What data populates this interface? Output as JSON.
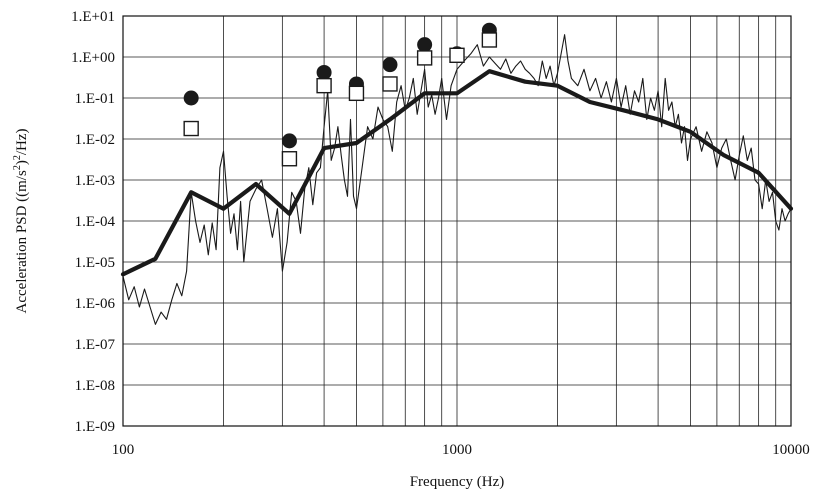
{
  "chart_data": {
    "type": "line",
    "xlabel": "Frequency (Hz)",
    "ylabel_parts": {
      "before": "Acceleration PSD ((m/s",
      "sup1": "2",
      "middle": ")",
      "sup2": "2",
      "after": "/Hz)"
    },
    "x_scale": "log",
    "y_scale": "log",
    "xlim": [
      100,
      10000
    ],
    "ylim": [
      1e-09,
      10
    ],
    "grid": true,
    "x_ticks": [
      {
        "value": 100,
        "label": "100"
      },
      {
        "value": 1000,
        "label": "1000"
      },
      {
        "value": 10000,
        "label": "10000"
      }
    ],
    "y_ticks": [
      {
        "value": 10,
        "label": "1.E+01"
      },
      {
        "value": 1,
        "label": "1.E+00"
      },
      {
        "value": 0.1,
        "label": "1.E-01"
      },
      {
        "value": 0.01,
        "label": "1.E-02"
      },
      {
        "value": 0.001,
        "label": "1.E-03"
      },
      {
        "value": 0.0001,
        "label": "1.E-04"
      },
      {
        "value": 1e-05,
        "label": "1.E-05"
      },
      {
        "value": 1e-06,
        "label": "1.E-06"
      },
      {
        "value": 1e-07,
        "label": "1.E-07"
      },
      {
        "value": 1e-08,
        "label": "1.E-08"
      },
      {
        "value": 1e-09,
        "label": "1.E-09"
      }
    ],
    "series": [
      {
        "style": "thin-line",
        "color": "#1a1a1a",
        "x": [
          100,
          104,
          108,
          112,
          116,
          120,
          125,
          130,
          135,
          140,
          145,
          150,
          155,
          160,
          165,
          170,
          175,
          180,
          185,
          190,
          195,
          200,
          205,
          210,
          215,
          220,
          225,
          230,
          240,
          250,
          260,
          270,
          280,
          290,
          300,
          310,
          320,
          330,
          340,
          350,
          360,
          370,
          380,
          390,
          400,
          410,
          420,
          430,
          440,
          450,
          460,
          470,
          480,
          490,
          500,
          520,
          540,
          560,
          580,
          600,
          620,
          640,
          660,
          680,
          700,
          720,
          740,
          760,
          780,
          800,
          820,
          840,
          860,
          880,
          900,
          930,
          960,
          1000,
          1050,
          1100,
          1150,
          1200,
          1250,
          1300,
          1350,
          1400,
          1450,
          1500,
          1550,
          1600,
          1650,
          1700,
          1750,
          1800,
          1850,
          1900,
          1950,
          2000,
          2050,
          2100,
          2150,
          2200,
          2300,
          2400,
          2500,
          2600,
          2700,
          2800,
          2900,
          3000,
          3100,
          3200,
          3300,
          3400,
          3500,
          3600,
          3700,
          3800,
          3900,
          4000,
          4100,
          4200,
          4300,
          4400,
          4500,
          4600,
          4700,
          4800,
          4900,
          5000,
          5200,
          5400,
          5600,
          5800,
          6000,
          6200,
          6400,
          6600,
          6800,
          7000,
          7200,
          7400,
          7600,
          7800,
          8000,
          8200,
          8400,
          8600,
          8800,
          9000,
          9200,
          9400,
          9600,
          9800,
          10000
        ],
        "values": [
          4.5e-06,
          1.2e-06,
          2.5e-06,
          8e-07,
          2.2e-06,
          9e-07,
          3e-07,
          6e-07,
          4e-07,
          1.2e-06,
          3e-06,
          1.5e-06,
          6e-06,
          0.0005,
          0.0001,
          3e-05,
          8e-05,
          1.5e-05,
          9e-05,
          2e-05,
          0.002,
          0.005,
          0.0004,
          5e-05,
          0.00015,
          2e-05,
          0.0003,
          1e-05,
          0.0003,
          0.0006,
          0.001,
          0.0002,
          4e-05,
          0.0002,
          6e-06,
          3e-05,
          0.0005,
          0.0003,
          5e-05,
          0.0006,
          0.002,
          0.00025,
          0.0015,
          0.002,
          0.02,
          0.15,
          0.003,
          0.006,
          0.02,
          0.004,
          0.001,
          0.0004,
          0.03,
          0.0004,
          0.0002,
          0.002,
          0.02,
          0.01,
          0.06,
          0.03,
          0.02,
          0.005,
          0.08,
          0.2,
          0.05,
          0.1,
          0.3,
          0.04,
          0.15,
          0.5,
          0.06,
          0.12,
          0.04,
          0.1,
          0.3,
          0.03,
          0.2,
          0.5,
          0.8,
          1.2,
          2,
          0.6,
          1.0,
          0.7,
          0.5,
          0.9,
          0.4,
          0.6,
          0.8,
          0.5,
          0.4,
          0.3,
          0.2,
          0.8,
          0.3,
          0.6,
          0.2,
          0.4,
          1.2,
          3.5,
          0.8,
          0.3,
          0.2,
          0.5,
          0.15,
          0.3,
          0.1,
          0.25,
          0.08,
          0.3,
          0.06,
          0.2,
          0.04,
          0.15,
          0.08,
          0.3,
          0.03,
          0.1,
          0.05,
          0.15,
          0.02,
          0.3,
          0.05,
          0.08,
          0.02,
          0.04,
          0.008,
          0.02,
          0.003,
          0.01,
          0.02,
          0.005,
          0.015,
          0.008,
          0.002,
          0.006,
          0.01,
          0.003,
          0.001,
          0.004,
          0.012,
          0.003,
          0.006,
          0.001,
          0.0008,
          0.0002,
          0.001,
          0.0003,
          0.0005,
          0.0001,
          6e-05,
          0.0002,
          0.0001,
          0.00015,
          0.0002
        ]
      },
      {
        "style": "thick-line",
        "color": "#1a1a1a",
        "x": [
          100,
          125,
          160,
          200,
          250,
          315,
          400,
          500,
          630,
          800,
          1000,
          1250,
          1600,
          2000,
          2500,
          3150,
          4000,
          5000,
          6300,
          8000,
          10000
        ],
        "values": [
          5e-06,
          1.2e-05,
          0.0005,
          0.0002,
          0.0008,
          0.00015,
          0.006,
          0.008,
          0.03,
          0.13,
          0.13,
          0.45,
          0.25,
          0.2,
          0.08,
          0.05,
          0.03,
          0.015,
          0.004,
          0.0015,
          0.0002
        ]
      },
      {
        "style": "filled-circles",
        "color": "#1a1a1a",
        "x": [
          160,
          315,
          400,
          500,
          630,
          800,
          1000,
          1250
        ],
        "values": [
          0.1,
          0.009,
          0.42,
          0.22,
          0.65,
          2.0,
          1.2,
          4.5
        ]
      },
      {
        "style": "open-squares",
        "color": "#1a1a1a",
        "x": [
          160,
          315,
          400,
          500,
          630,
          800,
          1000,
          1250
        ],
        "values": [
          0.018,
          0.0033,
          0.2,
          0.13,
          0.22,
          0.95,
          1.1,
          2.6
        ]
      }
    ]
  }
}
